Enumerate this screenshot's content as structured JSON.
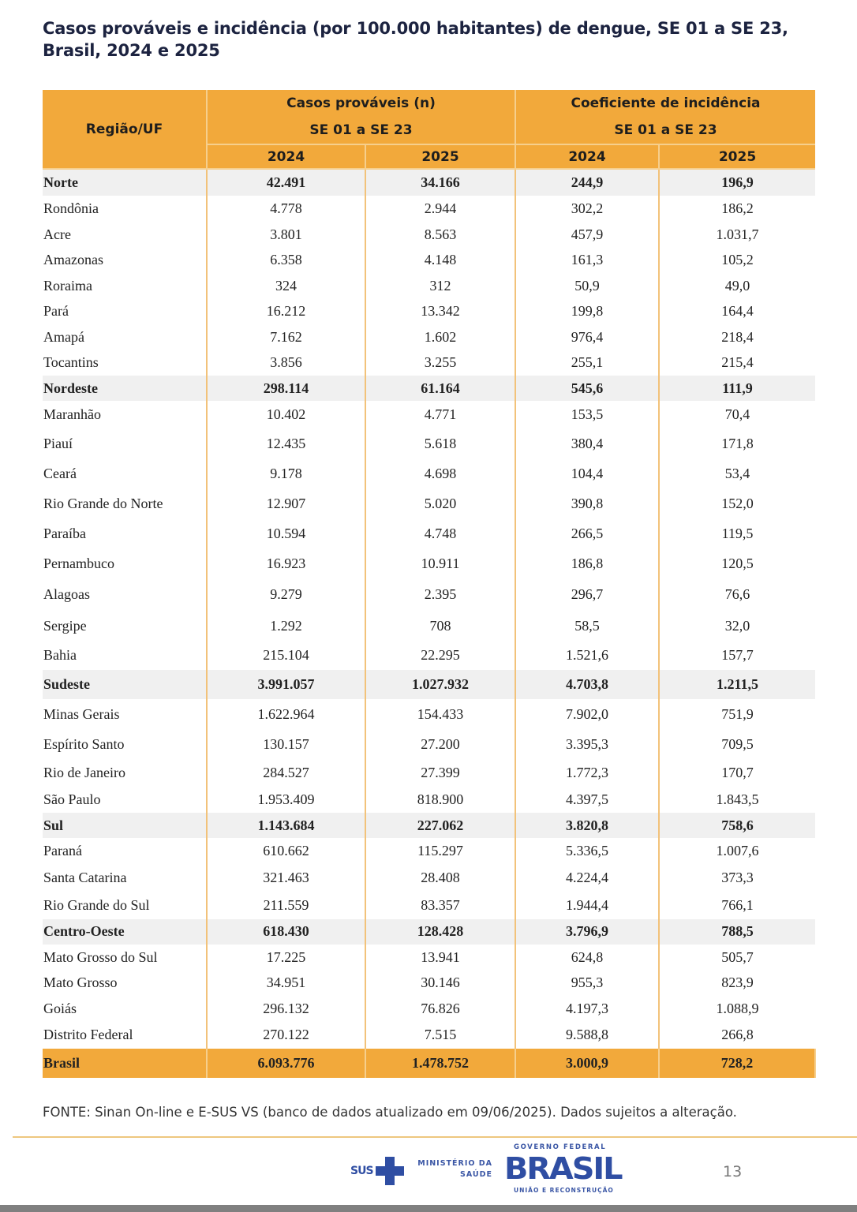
{
  "title": "Casos prováveis e incidência (por 100.000 habitantes) de dengue, SE 01 a SE 23, Brasil, 2024 e 2025",
  "table": {
    "header": {
      "region_label": "Região/UF",
      "cases_label": "Casos prováveis (n)",
      "cases_period": "SE 01 a SE 23",
      "incidence_label": "Coeficiente de incidência",
      "incidence_period": "SE 01 a SE 23",
      "years": [
        "2024",
        "2025",
        "2024",
        "2025"
      ]
    },
    "rows": [
      {
        "name": "Norte",
        "type": "region",
        "c2024": "42.491",
        "c2025": "34.166",
        "i2024": "244,9",
        "i2025": "196,9"
      },
      {
        "name": "Rondônia",
        "type": "uf",
        "c2024": "4.778",
        "c2025": "2.944",
        "i2024": "302,2",
        "i2025": "186,2"
      },
      {
        "name": "Acre",
        "type": "uf",
        "c2024": "3.801",
        "c2025": "8.563",
        "i2024": "457,9",
        "i2025": "1.031,7"
      },
      {
        "name": "Amazonas",
        "type": "uf",
        "c2024": "6.358",
        "c2025": "4.148",
        "i2024": "161,3",
        "i2025": "105,2"
      },
      {
        "name": "Roraima",
        "type": "uf",
        "c2024": "324",
        "c2025": "312",
        "i2024": "50,9",
        "i2025": "49,0"
      },
      {
        "name": "Pará",
        "type": "uf",
        "c2024": "16.212",
        "c2025": "13.342",
        "i2024": "199,8",
        "i2025": "164,4"
      },
      {
        "name": "Amapá",
        "type": "uf",
        "c2024": "7.162",
        "c2025": "1.602",
        "i2024": "976,4",
        "i2025": "218,4"
      },
      {
        "name": "Tocantins",
        "type": "uf",
        "c2024": "3.856",
        "c2025": "3.255",
        "i2024": "255,1",
        "i2025": "215,4"
      },
      {
        "name": "Nordeste",
        "type": "region",
        "c2024": "298.114",
        "c2025": "61.164",
        "i2024": "545,6",
        "i2025": "111,9"
      },
      {
        "name": "Maranhão",
        "type": "uf",
        "c2024": "10.402",
        "c2025": "4.771",
        "i2024": "153,5",
        "i2025": "70,4"
      },
      {
        "name": "Piauí",
        "type": "uf",
        "c2024": "12.435",
        "c2025": "5.618",
        "i2024": "380,4",
        "i2025": "171,8"
      },
      {
        "name": "Ceará",
        "type": "uf",
        "c2024": "9.178",
        "c2025": "4.698",
        "i2024": "104,4",
        "i2025": "53,4"
      },
      {
        "name": "Rio Grande do Norte",
        "type": "uf",
        "c2024": "12.907",
        "c2025": "5.020",
        "i2024": "390,8",
        "i2025": "152,0"
      },
      {
        "name": "Paraíba",
        "type": "uf",
        "c2024": "10.594",
        "c2025": "4.748",
        "i2024": "266,5",
        "i2025": "119,5"
      },
      {
        "name": "Pernambuco",
        "type": "uf",
        "c2024": "16.923",
        "c2025": "10.911",
        "i2024": "186,8",
        "i2025": "120,5"
      },
      {
        "name": "Alagoas",
        "type": "uf",
        "c2024": "9.279",
        "c2025": "2.395",
        "i2024": "296,7",
        "i2025": "76,6"
      },
      {
        "name": "Sergipe",
        "type": "uf",
        "c2024": "1.292",
        "c2025": "708",
        "i2024": "58,5",
        "i2025": "32,0"
      },
      {
        "name": "Bahia",
        "type": "uf",
        "c2024": "215.104",
        "c2025": "22.295",
        "i2024": "1.521,6",
        "i2025": "157,7"
      },
      {
        "name": "Sudeste",
        "type": "region",
        "c2024": "3.991.057",
        "c2025": "1.027.932",
        "i2024": "4.703,8",
        "i2025": "1.211,5"
      },
      {
        "name": "Minas Gerais",
        "type": "uf",
        "c2024": "1.622.964",
        "c2025": "154.433",
        "i2024": "7.902,0",
        "i2025": "751,9"
      },
      {
        "name": "Espírito Santo",
        "type": "uf",
        "c2024": "130.157",
        "c2025": "27.200",
        "i2024": "3.395,3",
        "i2025": "709,5"
      },
      {
        "name": "Rio de Janeiro",
        "type": "uf",
        "c2024": "284.527",
        "c2025": "27.399",
        "i2024": "1.772,3",
        "i2025": "170,7"
      },
      {
        "name": "São Paulo",
        "type": "uf",
        "c2024": "1.953.409",
        "c2025": "818.900",
        "i2024": "4.397,5",
        "i2025": "1.843,5"
      },
      {
        "name": "Sul",
        "type": "region",
        "c2024": "1.143.684",
        "c2025": "227.062",
        "i2024": "3.820,8",
        "i2025": "758,6"
      },
      {
        "name": "Paraná",
        "type": "uf",
        "c2024": "610.662",
        "c2025": "115.297",
        "i2024": "5.336,5",
        "i2025": "1.007,6"
      },
      {
        "name": "Santa Catarina",
        "type": "uf",
        "c2024": "321.463",
        "c2025": "28.408",
        "i2024": "4.224,4",
        "i2025": "373,3"
      },
      {
        "name": "Rio Grande do Sul",
        "type": "uf",
        "c2024": "211.559",
        "c2025": "83.357",
        "i2024": "1.944,4",
        "i2025": "766,1"
      },
      {
        "name": "Centro-Oeste",
        "type": "region",
        "c2024": "618.430",
        "c2025": "128.428",
        "i2024": "3.796,9",
        "i2025": "788,5"
      },
      {
        "name": "Mato Grosso do Sul",
        "type": "uf",
        "c2024": "17.225",
        "c2025": "13.941",
        "i2024": "624,8",
        "i2025": "505,7"
      },
      {
        "name": "Mato Grosso",
        "type": "uf",
        "c2024": "34.951",
        "c2025": "30.146",
        "i2024": "955,3",
        "i2025": "823,9"
      },
      {
        "name": "Goiás",
        "type": "uf",
        "c2024": "296.132",
        "c2025": "76.826",
        "i2024": "4.197,3",
        "i2025": "1.088,9"
      },
      {
        "name": "Distrito Federal",
        "type": "uf",
        "c2024": "270.122",
        "c2025": "7.515",
        "i2024": "9.588,8",
        "i2025": "266,8"
      },
      {
        "name": "Brasil",
        "type": "total",
        "c2024": "6.093.776",
        "c2025": "1.478.752",
        "i2024": "3.000,9",
        "i2025": "728,2"
      }
    ]
  },
  "source": "FONTE: Sinan On-line e E-SUS VS (banco de dados atualizado em 09/06/2025). Dados sujeitos a alteração.",
  "footer": {
    "sus_logo": "SUS",
    "ministry_line1": "MINISTÉRIO DA",
    "ministry_line2": "SAÚDE",
    "gov_top": "GOVERNO FEDERAL",
    "gov_brasil": "BRASIL",
    "gov_bottom": "UNIÃO E RECONSTRUÇÃO",
    "page_number": "13"
  },
  "colors": {
    "header_orange": "#f2a93b",
    "region_row": "#f0f0f0",
    "title": "#1c2340",
    "logo_blue": "#2f4ea3"
  }
}
